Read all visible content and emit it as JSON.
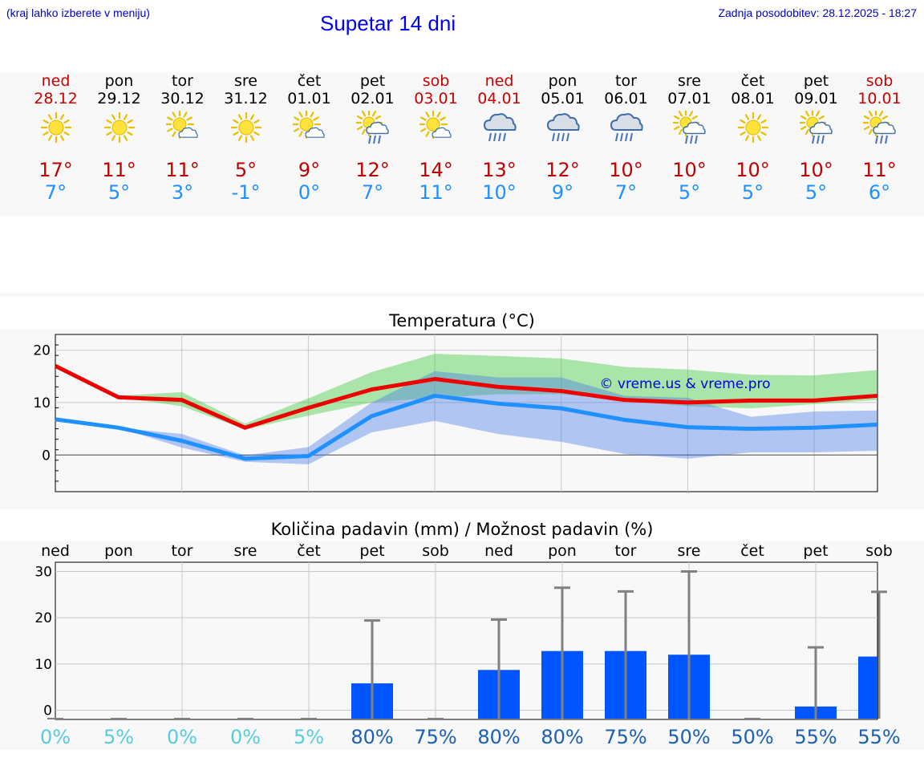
{
  "header": {
    "menu_hint": "(kraj lahko izberete v meniju)",
    "title": "Supetar 14 dni",
    "updated": "Zadnja posodobitev: 28.12.2025 - 18:27"
  },
  "colors": {
    "max": "#c00000",
    "min": "#1e90ff",
    "weekend": "#cc0000",
    "bar": "#0055ff",
    "pct_low": "#55ccdd",
    "pct_high": "#1a5fb4"
  },
  "days": [
    {
      "name": "ned",
      "date": "28.12",
      "weekend": true,
      "icon": "sun-icon",
      "max": "17°",
      "min": "7°"
    },
    {
      "name": "pon",
      "date": "29.12",
      "weekend": false,
      "icon": "sun-icon",
      "max": "11°",
      "min": "5°"
    },
    {
      "name": "tor",
      "date": "30.12",
      "weekend": false,
      "icon": "sun-cloud-icon",
      "max": "11°",
      "min": "3°"
    },
    {
      "name": "sre",
      "date": "31.12",
      "weekend": false,
      "icon": "sun-icon",
      "max": "5°",
      "min": "-1°"
    },
    {
      "name": "čet",
      "date": "01.01",
      "weekend": false,
      "icon": "sun-cloud-icon",
      "max": "9°",
      "min": "0°"
    },
    {
      "name": "pet",
      "date": "02.01",
      "weekend": false,
      "icon": "sun-rain-icon",
      "max": "12°",
      "min": "7°"
    },
    {
      "name": "sob",
      "date": "03.01",
      "weekend": true,
      "icon": "sun-cloud-icon",
      "max": "14°",
      "min": "11°"
    },
    {
      "name": "ned",
      "date": "04.01",
      "weekend": true,
      "icon": "rain-icon",
      "max": "13°",
      "min": "10°"
    },
    {
      "name": "pon",
      "date": "05.01",
      "weekend": false,
      "icon": "rain-icon",
      "max": "12°",
      "min": "9°"
    },
    {
      "name": "tor",
      "date": "06.01",
      "weekend": false,
      "icon": "rain-icon",
      "max": "10°",
      "min": "7°"
    },
    {
      "name": "sre",
      "date": "07.01",
      "weekend": false,
      "icon": "sun-rain-icon",
      "max": "10°",
      "min": "5°"
    },
    {
      "name": "čet",
      "date": "08.01",
      "weekend": false,
      "icon": "sun-icon",
      "max": "10°",
      "min": "5°"
    },
    {
      "name": "pet",
      "date": "09.01",
      "weekend": false,
      "icon": "sun-rain-icon",
      "max": "10°",
      "min": "5°"
    },
    {
      "name": "sob",
      "date": "10.01",
      "weekend": true,
      "icon": "sun-rain-icon",
      "max": "11°",
      "min": "6°"
    }
  ],
  "chart_data": [
    {
      "type": "line",
      "title": "Temperatura (°C)",
      "watermark": "© vreme.us & vreme.pro",
      "x": [
        0,
        1,
        2,
        3,
        4,
        5,
        6,
        7,
        8,
        9,
        10,
        11,
        12,
        13
      ],
      "ylim": [
        -7,
        23
      ],
      "yticks": [
        0,
        10,
        20
      ],
      "grid": true,
      "series": [
        {
          "name": "max",
          "values": [
            17,
            11,
            10.5,
            5.2,
            9,
            12.5,
            14.5,
            13,
            12.2,
            10.5,
            10,
            10.4,
            10.4,
            11.3
          ]
        },
        {
          "name": "min",
          "values": [
            6.8,
            5.2,
            2.7,
            -0.7,
            -0.2,
            7.4,
            11.3,
            9.8,
            8.9,
            6.7,
            5.3,
            5,
            5.2,
            5.8
          ]
        }
      ],
      "bands": [
        {
          "name": "max-range",
          "low": [
            17,
            11,
            9.3,
            4.9,
            7.5,
            10,
            10.9,
            11.6,
            11.6,
            10.4,
            9.3,
            8.9,
            9.7,
            10.5
          ],
          "high": [
            17,
            11.3,
            12,
            6,
            10.8,
            15.8,
            19.3,
            18.9,
            18.4,
            16.8,
            16.3,
            15.3,
            15.2,
            16.2
          ]
        },
        {
          "name": "min-range",
          "low": [
            6.8,
            5.2,
            1.4,
            -1.3,
            -1.8,
            4.3,
            6.5,
            4,
            2.5,
            0.2,
            -0.7,
            0.5,
            0.5,
            0.8
          ],
          "high": [
            6.8,
            5.2,
            4,
            -0.1,
            1.5,
            10,
            16,
            14.8,
            14.8,
            11.3,
            10.9,
            7.3,
            8.3,
            8.5
          ]
        }
      ]
    },
    {
      "type": "bar",
      "title": "Količina padavin (mm) / Možnost padavin (%)",
      "categories": [
        "ned",
        "pon",
        "tor",
        "sre",
        "čet",
        "pet",
        "sob",
        "ned",
        "pon",
        "tor",
        "sre",
        "čet",
        "pet",
        "sob"
      ],
      "values": [
        0,
        0,
        0,
        0,
        0,
        5.8,
        0,
        8.7,
        12.8,
        12.8,
        12,
        0,
        0.8,
        11.6
      ],
      "error_high": [
        0,
        0,
        0,
        0,
        0,
        19.4,
        0,
        19.6,
        26.5,
        25.7,
        30,
        0,
        13.6,
        25.6
      ],
      "probability": [
        "0%",
        "5%",
        "0%",
        "0%",
        "5%",
        "80%",
        "75%",
        "80%",
        "80%",
        "75%",
        "50%",
        "50%",
        "55%",
        "55%"
      ],
      "ylim": [
        -2,
        32
      ],
      "yticks": [
        0,
        10,
        20,
        30
      ],
      "grid": true
    }
  ]
}
